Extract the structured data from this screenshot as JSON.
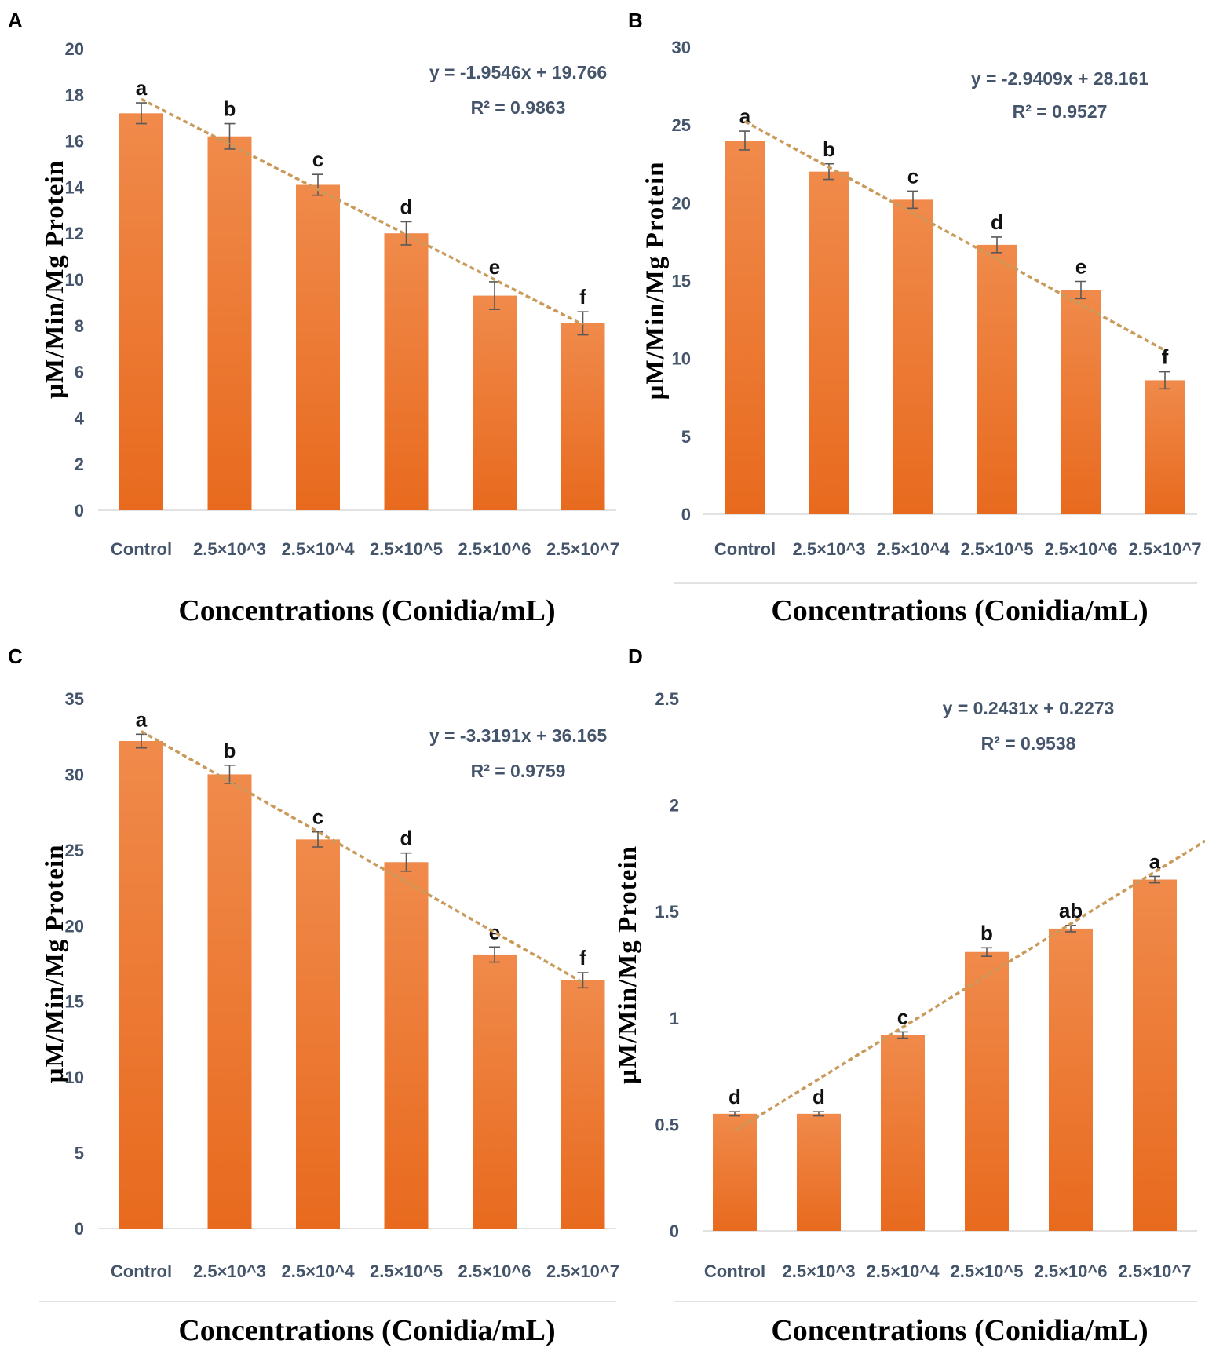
{
  "colors": {
    "bar_top": "#f08a4b",
    "bar_bottom": "#e86a1e",
    "trend": "#c99a5a",
    "tick": "#44546a"
  },
  "chart_data": [
    {
      "panel": "A",
      "type": "bar",
      "categories": [
        "Control",
        "2.5×10^3",
        "2.5×10^4",
        "2.5×10^5",
        "2.5×10^6",
        "2.5×10^7"
      ],
      "values": [
        17.2,
        16.2,
        14.1,
        12.0,
        9.3,
        8.1
      ],
      "errors": [
        0.45,
        0.55,
        0.45,
        0.5,
        0.6,
        0.5
      ],
      "significance": [
        "a",
        "b",
        "c",
        "d",
        "e",
        "f"
      ],
      "ylim": [
        0,
        20
      ],
      "yticks": [
        0,
        2,
        4,
        6,
        8,
        10,
        12,
        14,
        16,
        18,
        20
      ],
      "trendline": {
        "slope": -1.9546,
        "intercept": 19.766
      },
      "equation": "y = -1.9546x + 19.766",
      "r2": "R² = 0.9863",
      "xlabel": "Concentrations (Conidia/mL)",
      "ylabel": "µM/Min/Mg Protein"
    },
    {
      "panel": "B",
      "type": "bar",
      "categories": [
        "Control",
        "2.5×10^3",
        "2.5×10^4",
        "2.5×10^5",
        "2.5×10^6",
        "2.5×10^7"
      ],
      "values": [
        24.0,
        22.0,
        20.2,
        17.3,
        14.4,
        8.6
      ],
      "errors": [
        0.6,
        0.5,
        0.55,
        0.5,
        0.55,
        0.55
      ],
      "significance": [
        "a",
        "b",
        "c",
        "d",
        "e",
        "f"
      ],
      "ylim": [
        0,
        30
      ],
      "yticks": [
        0,
        5,
        10,
        15,
        20,
        25,
        30
      ],
      "trendline": {
        "slope": -2.9409,
        "intercept": 28.161
      },
      "equation": "y = -2.9409x + 28.161",
      "r2": "R² = 0.9527",
      "xlabel": "Concentrations (Conidia/mL)",
      "ylabel": "µM/Min/Mg Protein"
    },
    {
      "panel": "C",
      "type": "bar",
      "categories": [
        "Control",
        "2.5×10^3",
        "2.5×10^4",
        "2.5×10^5",
        "2.5×10^6",
        "2.5×10^7"
      ],
      "values": [
        32.2,
        30.0,
        25.7,
        24.2,
        18.1,
        16.4
      ],
      "errors": [
        0.45,
        0.6,
        0.5,
        0.6,
        0.5,
        0.5
      ],
      "significance": [
        "a",
        "b",
        "c",
        "d",
        "e",
        "f"
      ],
      "ylim": [
        0,
        35
      ],
      "yticks": [
        0,
        5,
        10,
        15,
        20,
        25,
        30,
        35
      ],
      "trendline": {
        "slope": -3.3191,
        "intercept": 36.165
      },
      "equation": "y = -3.3191x + 36.165",
      "r2": "R² = 0.9759",
      "xlabel": "Concentrations (Conidia/mL)",
      "ylabel": "µM/Min/Mg Protein"
    },
    {
      "panel": "D",
      "type": "bar",
      "categories": [
        "Control",
        "2.5×10^3",
        "2.5×10^4",
        "2.5×10^5",
        "2.5×10^6",
        "2.5×10^7"
      ],
      "values": [
        0.55,
        0.55,
        0.92,
        1.31,
        1.42,
        1.65
      ],
      "errors": [
        0.01,
        0.01,
        0.015,
        0.02,
        0.015,
        0.015
      ],
      "significance": [
        "d",
        "d",
        "c",
        "b",
        "ab",
        "a"
      ],
      "ylim": [
        0,
        2.5
      ],
      "yticks": [
        0,
        0.5,
        1,
        1.5,
        2,
        2.5
      ],
      "trendline": {
        "slope": 0.2431,
        "intercept": 0.2273
      },
      "equation": "y = 0.2431x + 0.2273",
      "r2": "R² = 0.9538",
      "xlabel": "Concentrations (Conidia/mL)",
      "ylabel": "µM/Min/Mg Protein"
    }
  ]
}
